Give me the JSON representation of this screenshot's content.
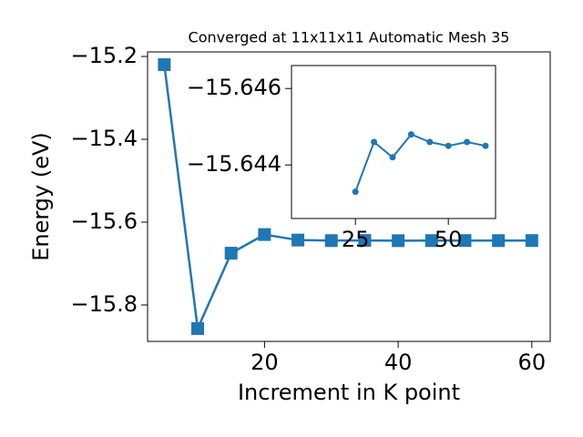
{
  "chart_data": [
    {
      "type": "line",
      "title": "Converged at 11x11x11 Automatic Mesh 35",
      "x_label": "Increment in K point",
      "y_label": "Energy (eV)",
      "x": [
        5,
        10,
        15,
        20,
        25,
        30,
        35,
        40,
        45,
        50,
        55,
        60
      ],
      "series": [
        {
          "color": "#1f77b4",
          "marker": "square",
          "values": [
            -15.2198,
            -15.857,
            -15.675,
            -15.63,
            -15.6433,
            -15.6446,
            -15.6442,
            -15.6448,
            -15.6446,
            -15.6445,
            -15.6446,
            -15.6445
          ]
        }
      ],
      "xlim": [
        2.5,
        62.75
      ],
      "ylim": [
        -15.888,
        -15.189
      ],
      "xticks": [
        20,
        40,
        60
      ],
      "yticks": [
        {
          "value": -15.8,
          "label": "−15.8"
        },
        {
          "value": -15.6,
          "label": "−15.6"
        },
        {
          "value": -15.4,
          "label": "−15.4"
        },
        {
          "value": -15.2,
          "label": "−15.2"
        }
      ]
    },
    {
      "type": "line",
      "x": [
        25,
        30,
        35,
        40,
        45,
        50,
        55,
        60
      ],
      "series": [
        {
          "color": "#1f77b4",
          "marker": "circle",
          "values": [
            -15.6433,
            -15.6446,
            -15.6442,
            -15.6448,
            -15.6446,
            -15.6445,
            -15.6446,
            -15.6445
          ]
        }
      ],
      "xlim": [
        7.8,
        62.7
      ],
      "ylim": [
        -15.6426,
        -15.6466
      ],
      "xticks": [
        25,
        50
      ],
      "yticks": [
        {
          "value": -15.646,
          "label": "−15.646"
        },
        {
          "value": -15.644,
          "label": "−15.644"
        }
      ]
    }
  ]
}
